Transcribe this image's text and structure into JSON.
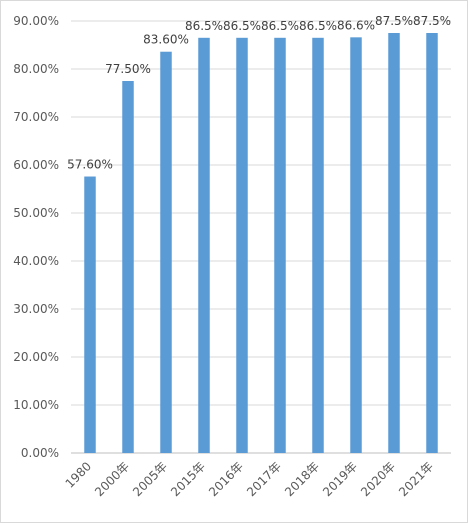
{
  "chart_data": {
    "type": "bar",
    "title": "",
    "xlabel": "",
    "ylabel": "",
    "categories": [
      "1980",
      "2000年",
      "2005年",
      "2015年",
      "2016年",
      "2017年",
      "2018年",
      "2019年",
      "2020年",
      "2021年"
    ],
    "values": [
      57.6,
      77.5,
      83.6,
      86.5,
      86.5,
      86.5,
      86.5,
      86.6,
      87.5,
      87.5
    ],
    "data_labels": [
      "57.60%",
      "77.50%",
      "83.60%",
      "86.5%",
      "86.5%",
      "86.5%",
      "86.5%",
      "86.6%",
      "87.5%",
      "87.5%"
    ],
    "y_ticks": [
      {
        "value": 0,
        "label": "0.00%"
      },
      {
        "value": 10,
        "label": "10.00%"
      },
      {
        "value": 20,
        "label": "20.00%"
      },
      {
        "value": 30,
        "label": "30.00%"
      },
      {
        "value": 40,
        "label": "40.00%"
      },
      {
        "value": 50,
        "label": "50.00%"
      },
      {
        "value": 60,
        "label": "60.00%"
      },
      {
        "value": 70,
        "label": "70.00%"
      },
      {
        "value": 80,
        "label": "80.00%"
      },
      {
        "value": 90,
        "label": "90.00%"
      }
    ],
    "ylim": [
      0,
      90
    ],
    "grid": true,
    "legend": "none",
    "bar_color": "#5b9bd5",
    "x_label_rotation": "-45deg"
  }
}
